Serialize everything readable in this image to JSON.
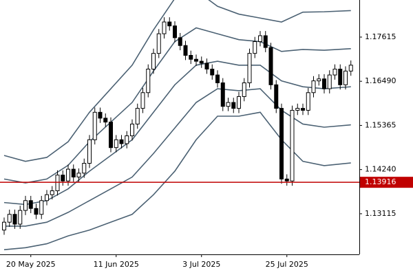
{
  "chart_data": {
    "type": "candlestick",
    "categories": [
      null,
      null,
      null,
      null,
      null,
      "20 May 2025",
      null,
      null,
      null,
      null,
      null,
      null,
      null,
      null,
      null,
      null,
      null,
      null,
      null,
      null,
      null,
      "11 Jun 2025",
      null,
      null,
      null,
      null,
      null,
      null,
      null,
      null,
      null,
      null,
      null,
      null,
      null,
      null,
      null,
      "3 Jul 2025",
      null,
      null,
      null,
      null,
      null,
      null,
      null,
      null,
      null,
      null,
      null,
      null,
      null,
      null,
      null,
      "25 Jul 2025",
      null,
      null,
      null,
      null,
      null,
      null,
      null,
      null,
      null,
      null,
      null,
      null
    ],
    "open": [
      1.127,
      1.129,
      1.131,
      1.1285,
      1.132,
      1.1345,
      1.1325,
      1.131,
      1.1345,
      1.136,
      1.137,
      1.141,
      1.1395,
      1.1425,
      1.1405,
      1.1415,
      1.144,
      1.15,
      1.157,
      1.1555,
      1.1545,
      1.148,
      1.15,
      1.149,
      1.151,
      1.154,
      1.158,
      1.162,
      1.168,
      1.172,
      1.177,
      1.18,
      1.179,
      1.176,
      1.174,
      1.1715,
      1.1705,
      1.17,
      1.1695,
      1.168,
      1.1665,
      1.1645,
      1.1585,
      1.1595,
      1.158,
      1.161,
      1.1645,
      1.172,
      1.175,
      1.1765,
      1.1735,
      1.164,
      1.158,
      1.14,
      1.1395,
      1.1575,
      1.158,
      1.1575,
      1.162,
      1.165,
      1.1655,
      1.163,
      1.1665,
      1.168,
      1.164,
      1.1675
    ],
    "close": [
      1.129,
      1.131,
      1.1285,
      1.132,
      1.1345,
      1.1325,
      1.131,
      1.1345,
      1.136,
      1.137,
      1.141,
      1.1395,
      1.1425,
      1.1405,
      1.1415,
      1.144,
      1.15,
      1.157,
      1.1555,
      1.1545,
      1.148,
      1.15,
      1.149,
      1.151,
      1.154,
      1.158,
      1.162,
      1.168,
      1.172,
      1.177,
      1.18,
      1.179,
      1.176,
      1.174,
      1.1715,
      1.1705,
      1.17,
      1.1695,
      1.168,
      1.1665,
      1.1645,
      1.1585,
      1.1595,
      1.158,
      1.161,
      1.1645,
      1.172,
      1.175,
      1.1765,
      1.1735,
      1.164,
      1.158,
      1.14,
      1.1395,
      1.1575,
      1.158,
      1.1575,
      1.162,
      1.165,
      1.1655,
      1.163,
      1.1665,
      1.168,
      1.164,
      1.1675,
      1.169
    ],
    "high": [
      1.1302,
      1.1322,
      1.1322,
      1.1332,
      1.1357,
      1.1357,
      1.1337,
      1.1357,
      1.1372,
      1.1382,
      1.1422,
      1.1422,
      1.1437,
      1.1437,
      1.1427,
      1.1452,
      1.1512,
      1.1582,
      1.1582,
      1.1567,
      1.1557,
      1.1512,
      1.1512,
      1.1522,
      1.1552,
      1.1592,
      1.1632,
      1.1692,
      1.1732,
      1.1782,
      1.1812,
      1.1812,
      1.1802,
      1.1772,
      1.1752,
      1.1727,
      1.1717,
      1.1712,
      1.1707,
      1.1692,
      1.1677,
      1.1657,
      1.1607,
      1.1607,
      1.1622,
      1.1657,
      1.1732,
      1.1762,
      1.1777,
      1.1777,
      1.1747,
      1.1652,
      1.1592,
      1.1412,
      1.1587,
      1.1592,
      1.1592,
      1.1632,
      1.1662,
      1.1667,
      1.1667,
      1.1677,
      1.1692,
      1.1692,
      1.1687,
      1.1702
    ],
    "low": [
      1.1258,
      1.1278,
      1.1273,
      1.1273,
      1.1308,
      1.1313,
      1.1298,
      1.1298,
      1.1333,
      1.1348,
      1.1358,
      1.1383,
      1.1383,
      1.1393,
      1.1393,
      1.1403,
      1.1428,
      1.1488,
      1.1543,
      1.1533,
      1.1468,
      1.1468,
      1.1478,
      1.1478,
      1.1498,
      1.1528,
      1.1568,
      1.1608,
      1.1668,
      1.1708,
      1.1758,
      1.1778,
      1.1748,
      1.1728,
      1.1703,
      1.1693,
      1.1688,
      1.1683,
      1.1668,
      1.1653,
      1.1633,
      1.1573,
      1.1573,
      1.1568,
      1.1568,
      1.1598,
      1.1633,
      1.1708,
      1.1738,
      1.1723,
      1.1628,
      1.1568,
      1.1388,
      1.1383,
      1.1383,
      1.1563,
      1.1563,
      1.1563,
      1.1608,
      1.1638,
      1.1618,
      1.1618,
      1.1653,
      1.1628,
      1.1628,
      1.1663
    ],
    "bull_color": "#ffffff",
    "bear_color": "#000000",
    "bands": {
      "color": "#4b6173",
      "x": [
        0,
        4,
        8,
        12,
        16,
        20,
        24,
        28,
        32,
        36,
        40,
        44,
        48,
        52,
        56,
        60,
        65
      ],
      "series": [
        {
          "values": [
            1.146,
            1.1445,
            1.1455,
            1.1495,
            1.157,
            1.163,
            1.169,
            1.178,
            1.186,
            1.188,
            1.184,
            1.182,
            1.181,
            1.18,
            1.1825,
            1.1826,
            1.1829
          ]
        },
        {
          "values": [
            1.14,
            1.139,
            1.14,
            1.1435,
            1.1495,
            1.1545,
            1.1595,
            1.1675,
            1.175,
            1.1785,
            1.177,
            1.1755,
            1.175,
            1.1725,
            1.173,
            1.1728,
            1.1732
          ]
        },
        {
          "values": [
            1.134,
            1.1335,
            1.1345,
            1.1375,
            1.142,
            1.146,
            1.15,
            1.157,
            1.164,
            1.169,
            1.17,
            1.169,
            1.169,
            1.165,
            1.1635,
            1.163,
            1.1635
          ]
        },
        {
          "values": [
            1.128,
            1.128,
            1.129,
            1.1315,
            1.1345,
            1.1375,
            1.1405,
            1.1465,
            1.153,
            1.1595,
            1.163,
            1.1625,
            1.163,
            1.1575,
            1.154,
            1.1532,
            1.1538
          ]
        },
        {
          "values": [
            1.122,
            1.1225,
            1.1235,
            1.1255,
            1.127,
            1.129,
            1.131,
            1.136,
            1.142,
            1.15,
            1.156,
            1.156,
            1.157,
            1.15,
            1.1445,
            1.1434,
            1.1441
          ]
        }
      ]
    },
    "price_line": {
      "value": 1.13916,
      "color": "#c00000"
    },
    "ylim": [
      1.1208,
      1.1856
    ],
    "yticks": [
      1.13115,
      {
        "value": 1.1424,
        "label": "1.14240"
      },
      1.15365,
      {
        "value": 1.1649,
        "label": "1.16490"
      },
      1.17615
    ]
  }
}
